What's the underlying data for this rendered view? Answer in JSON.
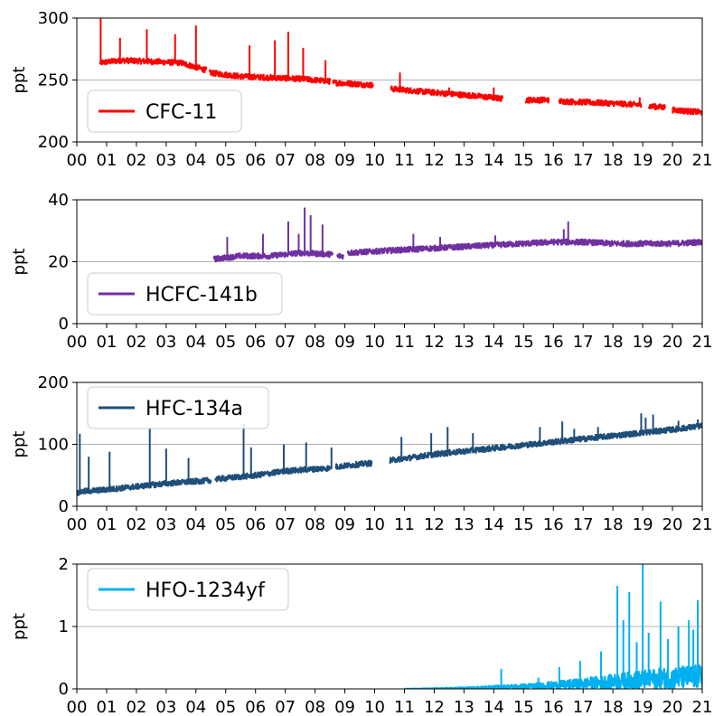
{
  "chart_data": [
    {
      "type": "line",
      "ylabel": "ppt",
      "ylim": [
        200,
        300
      ],
      "yticks": [
        "200",
        "250",
        "300"
      ],
      "xlim": [
        0,
        21
      ],
      "xticks": [
        "00",
        "01",
        "02",
        "03",
        "04",
        "05",
        "06",
        "07",
        "08",
        "09",
        "10",
        "11",
        "12",
        "13",
        "14",
        "15",
        "16",
        "17",
        "18",
        "19",
        "20",
        "21"
      ],
      "grid": "y",
      "legend_placement": "lower-left",
      "series": [
        {
          "name": "CFC-11",
          "color": "#ff0000"
        }
      ],
      "segments": [
        {
          "x": [
            0.78,
            1.5,
            2.5,
            3.5,
            4.35
          ],
          "y": [
            263,
            265,
            264,
            263,
            257
          ]
        },
        {
          "x": [
            4.45,
            5.5,
            6.5,
            7.5,
            8.5
          ],
          "y": [
            255,
            252,
            251,
            250,
            248
          ]
        },
        {
          "x": [
            8.6,
            9.3,
            9.95
          ],
          "y": [
            247,
            246,
            245
          ]
        },
        {
          "x": [
            10.55,
            11.5,
            12.5,
            13.5,
            14.3
          ],
          "y": [
            242,
            240,
            238,
            236,
            234
          ]
        },
        {
          "x": [
            15.05,
            15.85
          ],
          "y": [
            233,
            233
          ]
        },
        {
          "x": [
            16.2,
            17.2,
            18.2,
            18.95
          ],
          "y": [
            232,
            231,
            230,
            229
          ]
        },
        {
          "x": [
            19.2,
            19.75
          ],
          "y": [
            228,
            227
          ]
        },
        {
          "x": [
            20.0,
            20.5,
            21.0
          ],
          "y": [
            225,
            224,
            223
          ]
        }
      ],
      "spikes": [
        {
          "x": 0.8,
          "y": 300
        },
        {
          "x": 1.45,
          "y": 284
        },
        {
          "x": 2.35,
          "y": 291
        },
        {
          "x": 3.3,
          "y": 287
        },
        {
          "x": 4.0,
          "y": 294
        },
        {
          "x": 5.8,
          "y": 278
        },
        {
          "x": 6.65,
          "y": 282
        },
        {
          "x": 7.1,
          "y": 289
        },
        {
          "x": 7.6,
          "y": 276
        },
        {
          "x": 8.35,
          "y": 266
        },
        {
          "x": 10.85,
          "y": 256
        },
        {
          "x": 12.5,
          "y": 244
        },
        {
          "x": 14.0,
          "y": 244
        },
        {
          "x": 18.9,
          "y": 236
        }
      ]
    },
    {
      "type": "line",
      "ylabel": "ppt",
      "ylim": [
        0,
        40
      ],
      "yticks": [
        "0",
        "20",
        "40"
      ],
      "xlim": [
        0,
        21
      ],
      "xticks": [
        "00",
        "01",
        "02",
        "03",
        "04",
        "05",
        "06",
        "07",
        "08",
        "09",
        "10",
        "11",
        "12",
        "13",
        "14",
        "15",
        "16",
        "17",
        "18",
        "19",
        "20",
        "21"
      ],
      "grid": "y",
      "legend_placement": "lower-left",
      "series": [
        {
          "name": "HCFC-141b",
          "color": "#7030a0"
        }
      ],
      "segments": [
        {
          "x": [
            4.6,
            5.5,
            6.5,
            7.5,
            8.6
          ],
          "y": [
            20.5,
            21.5,
            21.5,
            22.5,
            22
          ]
        },
        {
          "x": [
            8.75,
            8.95
          ],
          "y": [
            21.5,
            21.5
          ]
        },
        {
          "x": [
            9.1,
            10.0,
            11.0,
            12.0,
            13.0,
            14.0,
            15.0,
            16.0,
            17.0,
            18.0,
            19.0,
            20.0,
            21.0
          ],
          "y": [
            22.5,
            23,
            23.5,
            24,
            24.5,
            25,
            25.5,
            26,
            26,
            25.5,
            25.5,
            25.5,
            26
          ]
        }
      ],
      "spikes": [
        {
          "x": 5.05,
          "y": 28
        },
        {
          "x": 6.25,
          "y": 29
        },
        {
          "x": 7.1,
          "y": 33
        },
        {
          "x": 7.45,
          "y": 29
        },
        {
          "x": 7.65,
          "y": 37.5
        },
        {
          "x": 7.85,
          "y": 35
        },
        {
          "x": 8.25,
          "y": 32
        },
        {
          "x": 11.3,
          "y": 29
        },
        {
          "x": 12.2,
          "y": 28
        },
        {
          "x": 14.05,
          "y": 28.5
        },
        {
          "x": 16.5,
          "y": 33
        },
        {
          "x": 16.35,
          "y": 30.5
        }
      ]
    },
    {
      "type": "line",
      "ylabel": "ppt",
      "ylim": [
        0,
        200
      ],
      "yticks": [
        "0",
        "100",
        "200"
      ],
      "xlim": [
        0,
        21
      ],
      "xticks": [
        "00",
        "01",
        "02",
        "03",
        "04",
        "05",
        "06",
        "07",
        "08",
        "09",
        "10",
        "11",
        "12",
        "13",
        "14",
        "15",
        "16",
        "17",
        "18",
        "19",
        "20",
        "21"
      ],
      "grid": "y",
      "legend_placement": "top-left",
      "series": [
        {
          "name": "HFC-134a",
          "color": "#1f4e79"
        }
      ],
      "segments": [
        {
          "x": [
            0.0,
            0.2,
            1.0,
            2.0,
            3.0,
            4.5
          ],
          "y": [
            20,
            22,
            25,
            30,
            35,
            40
          ]
        },
        {
          "x": [
            4.65,
            6.0,
            7.0,
            8.5
          ],
          "y": [
            42,
            48,
            55,
            60
          ]
        },
        {
          "x": [
            8.7,
            9.9
          ],
          "y": [
            62,
            68
          ]
        },
        {
          "x": [
            10.5,
            12.0,
            14.0,
            16.0,
            18.0,
            19.0,
            20.0,
            21.0
          ],
          "y": [
            72,
            82,
            92,
            102,
            112,
            117,
            122,
            128
          ]
        }
      ],
      "spikes": [
        {
          "x": 0.1,
          "y": 117
        },
        {
          "x": 0.4,
          "y": 80
        },
        {
          "x": 1.1,
          "y": 88
        },
        {
          "x": 2.45,
          "y": 125
        },
        {
          "x": 3.0,
          "y": 93
        },
        {
          "x": 3.75,
          "y": 78
        },
        {
          "x": 5.6,
          "y": 133
        },
        {
          "x": 5.85,
          "y": 95
        },
        {
          "x": 6.95,
          "y": 100
        },
        {
          "x": 7.7,
          "y": 103
        },
        {
          "x": 8.55,
          "y": 95
        },
        {
          "x": 10.9,
          "y": 112
        },
        {
          "x": 11.9,
          "y": 118
        },
        {
          "x": 12.45,
          "y": 128
        },
        {
          "x": 13.3,
          "y": 118
        },
        {
          "x": 15.55,
          "y": 128
        },
        {
          "x": 16.3,
          "y": 137
        },
        {
          "x": 16.7,
          "y": 125
        },
        {
          "x": 17.5,
          "y": 128
        },
        {
          "x": 18.95,
          "y": 150
        },
        {
          "x": 19.1,
          "y": 143
        },
        {
          "x": 19.35,
          "y": 148
        },
        {
          "x": 20.2,
          "y": 138
        },
        {
          "x": 20.85,
          "y": 140
        }
      ]
    },
    {
      "type": "line",
      "ylabel": "ppt",
      "ylim": [
        0,
        2
      ],
      "yticks": [
        "0",
        "1",
        "2"
      ],
      "xlim": [
        0,
        21
      ],
      "xticks": [
        "00",
        "01",
        "02",
        "03",
        "04",
        "05",
        "06",
        "07",
        "08",
        "09",
        "10",
        "11",
        "12",
        "13",
        "14",
        "15",
        "16",
        "17",
        "18",
        "19",
        "20",
        "21"
      ],
      "grid": "y",
      "legend_placement": "top-left",
      "series": [
        {
          "name": "HFO-1234yf",
          "color": "#00b0f0"
        }
      ],
      "segments": [
        {
          "x": [
            11.0,
            12.0,
            13.0,
            14.0,
            15.0,
            16.0,
            17.0,
            18.0,
            19.0,
            20.0,
            21.0
          ],
          "y": [
            0.0,
            0.01,
            0.02,
            0.04,
            0.06,
            0.09,
            0.13,
            0.18,
            0.23,
            0.27,
            0.3
          ]
        }
      ],
      "spikes": [
        {
          "x": 14.25,
          "y": 0.32
        },
        {
          "x": 15.5,
          "y": 0.18
        },
        {
          "x": 16.2,
          "y": 0.35
        },
        {
          "x": 16.9,
          "y": 0.45
        },
        {
          "x": 17.6,
          "y": 0.6
        },
        {
          "x": 18.15,
          "y": 1.65
        },
        {
          "x": 18.35,
          "y": 1.1
        },
        {
          "x": 18.55,
          "y": 1.55
        },
        {
          "x": 18.8,
          "y": 0.75
        },
        {
          "x": 19.0,
          "y": 2.0
        },
        {
          "x": 19.2,
          "y": 0.9
        },
        {
          "x": 19.6,
          "y": 1.4
        },
        {
          "x": 19.85,
          "y": 0.8
        },
        {
          "x": 20.2,
          "y": 1.0
        },
        {
          "x": 20.55,
          "y": 1.1
        },
        {
          "x": 20.7,
          "y": 0.95
        },
        {
          "x": 20.85,
          "y": 1.42
        }
      ]
    }
  ]
}
